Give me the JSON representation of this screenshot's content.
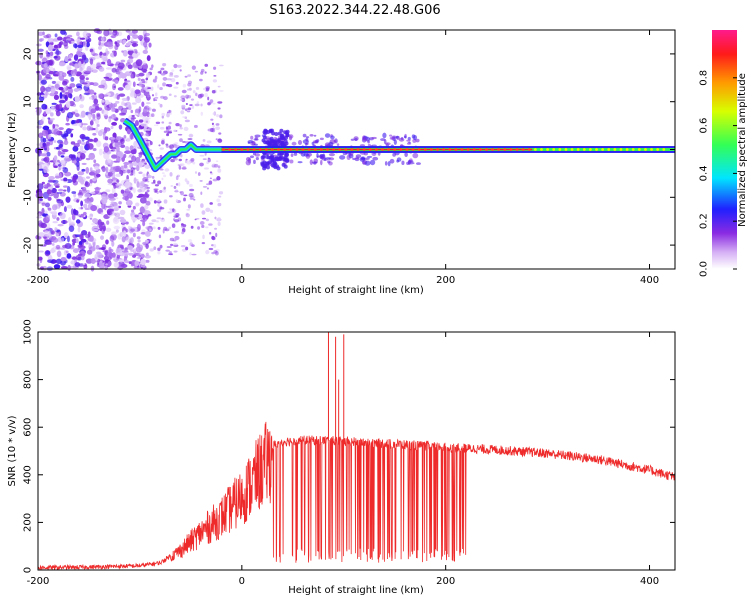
{
  "title": "S163.2022.344.22.48.G06",
  "chart_data": [
    {
      "type": "heatmap",
      "xlabel": "Height of straight line (km)",
      "ylabel": "Frequency (Hz)",
      "xlim": [
        -200,
        425
      ],
      "ylim": [
        -25,
        25
      ],
      "x_ticks": [
        -200,
        0,
        200,
        400
      ],
      "y_ticks": [
        -20,
        -10,
        0,
        10,
        20
      ],
      "colorbar": {
        "label": "Normalized spectral amplitude",
        "range": [
          0,
          1
        ],
        "ticks": [
          "0.0",
          "0.2",
          "0.4",
          "0.6",
          "0.8"
        ]
      },
      "trace": {
        "x": [
          -115,
          -108,
          -100,
          -95,
          -90,
          -85,
          -80,
          -75,
          -70,
          -65,
          -60,
          -55,
          -50,
          -45,
          -40,
          -35,
          -30,
          -25,
          -20,
          0,
          50,
          100,
          150,
          200,
          250,
          300,
          350,
          400,
          425
        ],
        "y": [
          6,
          5,
          2,
          0,
          -2,
          -4,
          -3,
          -2,
          -1,
          -1,
          0,
          0,
          1,
          0,
          0,
          0,
          0,
          0,
          0,
          0,
          0,
          0,
          0,
          0,
          0,
          0,
          0,
          0,
          0
        ]
      }
    },
    {
      "type": "line",
      "xlabel": "Height of straight line (km)",
      "ylabel": "SNR (10 * v/v)",
      "xlim": [
        -200,
        425
      ],
      "ylim": [
        0,
        1000
      ],
      "x_ticks": [
        -200,
        0,
        200,
        400
      ],
      "y_ticks": [
        0,
        200,
        400,
        600,
        800,
        1000
      ],
      "color": "#ee2a2a",
      "envelope_x": [
        -200,
        -150,
        -100,
        -80,
        -60,
        -40,
        -20,
        0,
        20,
        30,
        40,
        60,
        80,
        100,
        150,
        200,
        250,
        300,
        350,
        400,
        425
      ],
      "envelope_y": [
        10,
        12,
        18,
        30,
        90,
        170,
        240,
        330,
        460,
        520,
        540,
        545,
        545,
        540,
        530,
        515,
        505,
        490,
        465,
        420,
        390
      ],
      "spikes": [
        {
          "x": 85,
          "y": 1000
        },
        {
          "x": 92,
          "y": 980
        },
        {
          "x": 100,
          "y": 990
        },
        {
          "x": 95,
          "y": 800
        }
      ]
    }
  ]
}
